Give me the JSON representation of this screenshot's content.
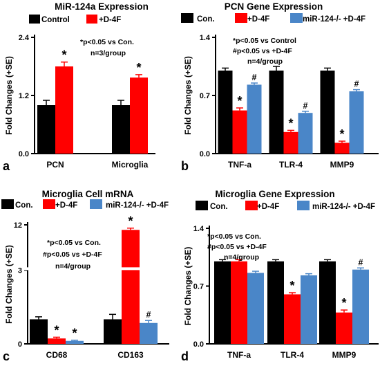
{
  "colors": {
    "control": "#000000",
    "d4f": "#ff0000",
    "mir_ko_d4f": "#4a86c8"
  },
  "chart_data": [
    {
      "panel": "a",
      "type": "bar",
      "title": "MiR-124a Expression",
      "ylabel": "Fold Changes (+SE)",
      "ylim": [
        0,
        2.4
      ],
      "yticks": [
        "0.0",
        "1.2",
        "2.4"
      ],
      "categories": [
        "PCN",
        "Microglia"
      ],
      "legend": [
        "Control",
        "+D-4F"
      ],
      "annotations": [
        "*p<0.05 vs Con.",
        "n=3/group"
      ],
      "series": [
        {
          "name": "Control",
          "color": "#000000",
          "values": [
            1.0,
            1.0
          ],
          "se": [
            0.1,
            0.1
          ],
          "marks": [
            "",
            ""
          ]
        },
        {
          "name": "+D-4F",
          "color": "#ff0000",
          "values": [
            1.8,
            1.57
          ],
          "se": [
            0.09,
            0.06
          ],
          "marks": [
            "*",
            "*"
          ]
        }
      ]
    },
    {
      "panel": "b",
      "type": "bar",
      "title": "PCN Gene Expression",
      "ylabel": "Fold Changes (+SE)",
      "ylim": [
        0,
        1.4
      ],
      "yticks": [
        "0.0",
        "0.7",
        "1.4"
      ],
      "categories": [
        "TNF-a",
        "TLR-4",
        "MMP9"
      ],
      "legend": [
        "Con.",
        "+D-4F",
        "miR-124-/- +D-4F"
      ],
      "annotations": [
        "*p<0.05 vs Control",
        "#p<0.05 vs +D-4F",
        "n=4/group"
      ],
      "series": [
        {
          "name": "Con.",
          "color": "#000000",
          "values": [
            1.0,
            1.0,
            1.0
          ],
          "se": [
            0.03,
            0.05,
            0.03
          ],
          "marks": [
            "",
            "",
            ""
          ]
        },
        {
          "name": "+D-4F",
          "color": "#ff0000",
          "values": [
            0.52,
            0.26,
            0.13
          ],
          "se": [
            0.03,
            0.02,
            0.02
          ],
          "marks": [
            "*",
            "*",
            "*"
          ]
        },
        {
          "name": "miR-124-/- +D-4F",
          "color": "#4a86c8",
          "values": [
            0.83,
            0.49,
            0.75
          ],
          "se": [
            0.02,
            0.02,
            0.02
          ],
          "marks": [
            "#",
            "#",
            "#"
          ]
        }
      ]
    },
    {
      "panel": "c",
      "type": "bar",
      "title": "Microglia Cell mRNA",
      "ylabel": "Fold Changes (+SE)",
      "ylim": [
        0,
        12
      ],
      "y_axis_break": {
        "at": 3,
        "top": 12
      },
      "yticks": [
        "0",
        "3",
        "12"
      ],
      "categories": [
        "CD68",
        "CD163"
      ],
      "legend": [
        "Con.",
        "+D-4F",
        "miR-124-/- +D-4F"
      ],
      "annotations": [
        "*p<0.05 vs Con.",
        "#p<0.05 vs +D-4F",
        "n=4/group"
      ],
      "series": [
        {
          "name": "Con.",
          "color": "#000000",
          "values": [
            1.0,
            1.0
          ],
          "se": [
            0.1,
            0.2
          ],
          "marks": [
            "",
            ""
          ]
        },
        {
          "name": "+D-4F",
          "color": "#ff0000",
          "values": [
            0.22,
            11.0
          ],
          "se": [
            0.05,
            0.35
          ],
          "marks": [
            "*",
            "*"
          ]
        },
        {
          "name": "miR-124-/- +D-4F",
          "color": "#4a86c8",
          "values": [
            0.12,
            0.85
          ],
          "se": [
            0.03,
            0.1
          ],
          "marks": [
            "*",
            "#"
          ]
        }
      ]
    },
    {
      "panel": "d",
      "type": "bar",
      "title": "Microglia Gene Expression",
      "ylabel": "Fold Changes (+SE)",
      "ylim": [
        0,
        1.4
      ],
      "yticks": [
        "0.0",
        "0.7",
        "1.4"
      ],
      "categories": [
        "TNF-a",
        "TLR-4",
        "MMP9"
      ],
      "legend": [
        "Con.",
        "+D-4F",
        "miR-124-/- +D-4F"
      ],
      "annotations": [
        "*p<0.05 vs Con.",
        "#p<0.05 vs +D-4F",
        "n=4/group"
      ],
      "series": [
        {
          "name": "Con.",
          "color": "#000000",
          "values": [
            1.0,
            1.0,
            1.0
          ],
          "se": [
            0.02,
            0.02,
            0.02
          ],
          "marks": [
            "",
            "",
            ""
          ]
        },
        {
          "name": "+D-4F",
          "color": "#ff0000",
          "values": [
            1.0,
            0.6,
            0.38
          ],
          "se": [
            0.02,
            0.02,
            0.03
          ],
          "marks": [
            "",
            "*",
            "*"
          ]
        },
        {
          "name": "miR-124-/- +D-4F",
          "color": "#4a86c8",
          "values": [
            0.86,
            0.83,
            0.9
          ],
          "se": [
            0.02,
            0.02,
            0.02
          ],
          "marks": [
            "",
            "",
            "#"
          ]
        }
      ]
    }
  ]
}
